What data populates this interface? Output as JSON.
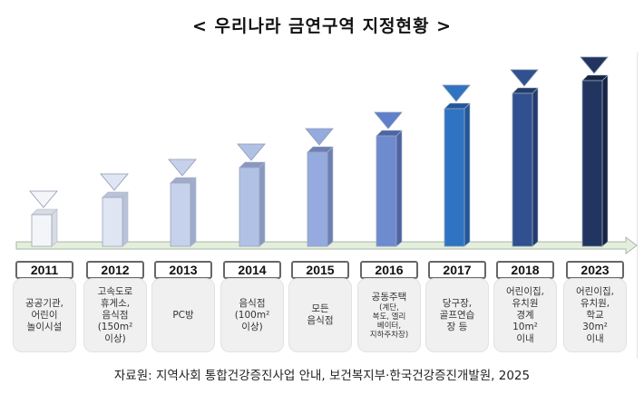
{
  "title": "< 우리나라 금연구역 지정현황 >",
  "timeline": [
    {
      "year": "2011",
      "text": "공공기관,\n어린이\n놀이시설",
      "front": "#f4f5f8",
      "side": "#d8dbe2",
      "tri": "#f4f5f8"
    },
    {
      "year": "2012",
      "text": "고속도로\n휴게소,\n음식점\n(150m²\n이상)",
      "front": "#dfe5f3",
      "side": "#b9c2d8",
      "tri": "#dfe5f3"
    },
    {
      "year": "2013",
      "text": "PC방",
      "front": "#c6d1ec",
      "side": "#9eabca",
      "tri": "#c6d1ec"
    },
    {
      "year": "2014",
      "text": "음식점\n(100m²\n이상)",
      "front": "#b1c1e6",
      "side": "#8797c0",
      "tri": "#b1c1e6"
    },
    {
      "year": "2015",
      "text": "모든\n음식점",
      "front": "#95abdf",
      "side": "#6d80b5",
      "tri": "#95abdf"
    },
    {
      "year": "2016",
      "text": "공동주택",
      "subtext": "(계단,\n복도, 엘리\n베이터,\n지하주차장)",
      "front": "#6e8bd0",
      "side": "#4d64a4",
      "tri": "#5f7fcc"
    },
    {
      "year": "2017",
      "text": "당구장,\n골프연습\n장 등",
      "front": "#2e74c2",
      "side": "#22569a",
      "tri": "#2e74c2"
    },
    {
      "year": "2018",
      "text": "어린이집,\n유치원\n경계\n10m²\n이내",
      "front": "#30508f",
      "side": "#233c6d",
      "tri": "#30508f"
    },
    {
      "year": "2023",
      "text": "어린이집,\n유치원,\n학교\n30m²\n이내",
      "front": "#223560",
      "side": "#172545",
      "tri": "#223560"
    }
  ],
  "arrow_color": "#e3efdc",
  "source": "자료원: 지역사회 통합건강증진사업 안내, 보건복지부·한국건강증진개발원, 2025"
}
